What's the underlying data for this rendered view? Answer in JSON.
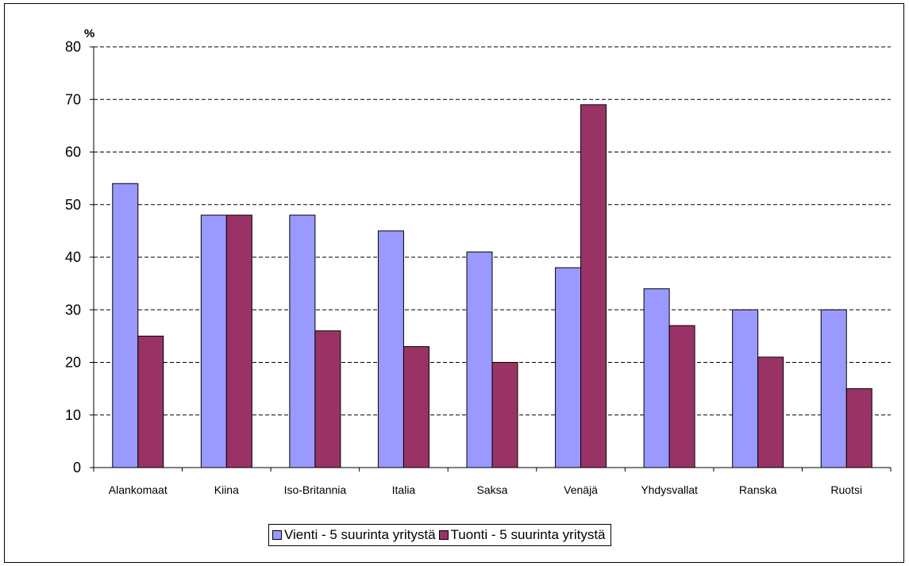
{
  "chart_data": {
    "type": "bar",
    "unit_label": "%",
    "categories": [
      "Alankomaat",
      "Kiina",
      "Iso-Britannia",
      "Italia",
      "Saksa",
      "Venäjä",
      "Yhdysvallat",
      "Ranska",
      "Ruotsi"
    ],
    "series": [
      {
        "name": "Vienti - 5 suurinta yritystä",
        "color": "#9999ff",
        "values": [
          54,
          48,
          48,
          45,
          41,
          38,
          34,
          30,
          30
        ]
      },
      {
        "name": "Tuonti - 5 suurinta yritystä",
        "color": "#993366",
        "values": [
          25,
          48,
          26,
          23,
          20,
          69,
          27,
          21,
          15
        ]
      }
    ],
    "ylim": [
      0,
      80
    ],
    "yticks": [
      0,
      10,
      20,
      30,
      40,
      50,
      60,
      70,
      80
    ],
    "grid": "horizontal dashed",
    "legend_position": "bottom-center"
  }
}
